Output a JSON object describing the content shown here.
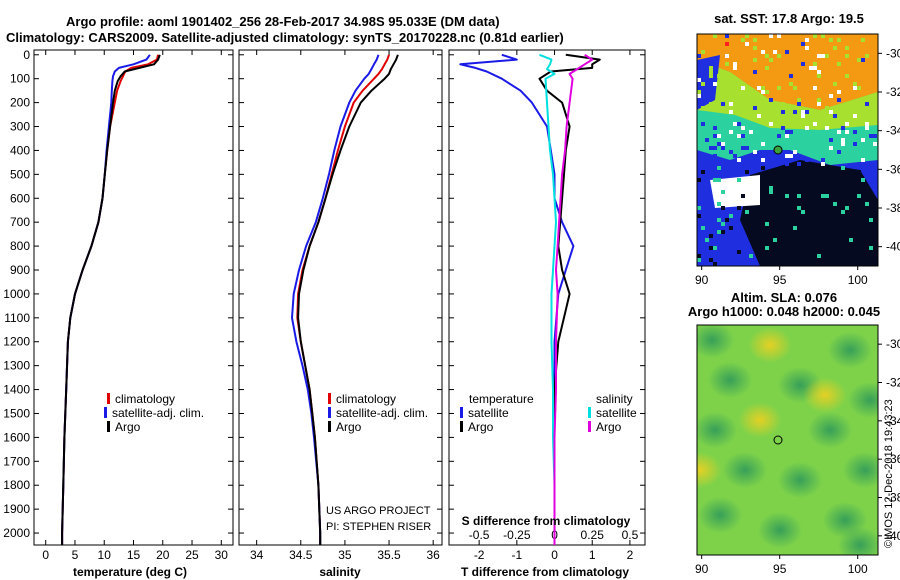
{
  "header": {
    "line1": "Argo profile: aoml 1901402_256 28-Feb-2017 34.98S 95.033E (DM data)",
    "line2": "Climatology: CARS2009. Satellite-adjusted climatology: synTS_20170228.nc (0.81d earlier)"
  },
  "depth_ticks": [
    "0",
    "100",
    "200",
    "300",
    "400",
    "500",
    "600",
    "700",
    "800",
    "900",
    "1000",
    "1100",
    "1200",
    "1300",
    "1400",
    "1500",
    "1600",
    "1700",
    "1800",
    "1900",
    "2000"
  ],
  "colors": {
    "climatology": "#e00000",
    "satellite": "#1a1ae6",
    "argo": "#000000",
    "sat_salinity": "#00e0e0",
    "argo_salinity": "#e000e0"
  },
  "chart_data": [
    {
      "type": "line",
      "name": "temperature",
      "xlabel": "temperature (deg C)",
      "xlim": [
        -2,
        32
      ],
      "ylim": [
        2050,
        -20
      ],
      "xticks": [
        0,
        5,
        10,
        15,
        20,
        25,
        30
      ],
      "xtick_labels": [
        "0",
        "5",
        "10",
        "15",
        "20",
        "25",
        "30"
      ],
      "legend": [
        "climatology",
        "satellite-adj. clim.",
        "Argo"
      ],
      "series": [
        {
          "name": "climatology",
          "depth": [
            0,
            20,
            40,
            55,
            70,
            90,
            110,
            150,
            200,
            300,
            400,
            500,
            600,
            700,
            800,
            900,
            1000,
            1100,
            1200,
            1400,
            1600,
            1800,
            2000,
            2050
          ],
          "values": [
            19.2,
            19.0,
            17.5,
            14.6,
            13.6,
            13.2,
            12.8,
            12.2,
            11.8,
            11.0,
            10.5,
            10.1,
            9.7,
            9.0,
            7.8,
            6.3,
            5.0,
            4.2,
            3.8,
            3.5,
            3.2,
            3.0,
            2.8,
            2.8
          ]
        },
        {
          "name": "satellite-adj. clim.",
          "depth": [
            0,
            20,
            40,
            55,
            70,
            90,
            110,
            150,
            200,
            300,
            400,
            500,
            600,
            700,
            800,
            900,
            1000,
            1100,
            1200,
            1400,
            1600,
            1800,
            2000,
            2050
          ],
          "values": [
            17.8,
            17.2,
            15.0,
            12.5,
            11.8,
            11.5,
            11.4,
            11.3,
            11.2,
            10.8,
            10.4,
            10.1,
            9.7,
            9.0,
            7.8,
            6.3,
            5.0,
            4.2,
            3.8,
            3.5,
            3.2,
            3.0,
            2.8,
            2.8
          ]
        },
        {
          "name": "Argo",
          "depth": [
            0,
            20,
            40,
            55,
            70,
            90,
            110,
            150,
            200,
            300,
            400,
            500,
            600,
            700,
            800,
            900,
            1000,
            1100,
            1200,
            1400,
            1600,
            1800,
            2000,
            2050
          ],
          "values": [
            19.5,
            19.2,
            18.5,
            16.0,
            13.5,
            12.8,
            12.3,
            11.8,
            11.5,
            11.0,
            10.5,
            10.1,
            9.7,
            9.0,
            7.8,
            6.3,
            5.0,
            4.2,
            3.8,
            3.5,
            3.2,
            3.0,
            2.8,
            2.8
          ]
        }
      ]
    },
    {
      "type": "line",
      "name": "salinity",
      "xlabel": "salinity",
      "xlim": [
        33.8,
        36.1
      ],
      "ylim": [
        2050,
        -20
      ],
      "xticks": [
        34,
        34.5,
        35,
        35.5,
        36
      ],
      "xtick_labels": [
        "34",
        "34.5",
        "35",
        "35.5",
        "36"
      ],
      "legend": [
        "climatology",
        "satellite-adj. clim.",
        "Argo"
      ],
      "series": [
        {
          "name": "climatology",
          "depth": [
            0,
            20,
            40,
            60,
            80,
            100,
            150,
            200,
            300,
            400,
            500,
            600,
            700,
            800,
            900,
            1000,
            1100,
            1200,
            1300,
            1400,
            1500,
            1600,
            1800,
            2000,
            2050
          ],
          "values": [
            35.5,
            35.48,
            35.45,
            35.42,
            35.38,
            35.33,
            35.2,
            35.1,
            35.0,
            34.92,
            34.85,
            34.78,
            34.7,
            34.6,
            34.52,
            34.47,
            34.46,
            34.5,
            34.55,
            34.6,
            34.63,
            34.66,
            34.7,
            34.72,
            34.72
          ]
        },
        {
          "name": "satellite-adj. clim.",
          "depth": [
            0,
            20,
            40,
            60,
            80,
            100,
            150,
            200,
            300,
            400,
            500,
            600,
            700,
            800,
            900,
            1000,
            1100,
            1200,
            1300,
            1400,
            1500,
            1600,
            1800,
            2000,
            2050
          ],
          "values": [
            35.38,
            35.36,
            35.33,
            35.3,
            35.27,
            35.22,
            35.12,
            35.05,
            34.95,
            34.88,
            34.82,
            34.75,
            34.67,
            34.56,
            34.48,
            34.42,
            34.4,
            34.45,
            34.52,
            34.58,
            34.62,
            34.65,
            34.7,
            34.72,
            34.72
          ]
        },
        {
          "name": "Argo",
          "depth": [
            0,
            20,
            40,
            60,
            80,
            100,
            150,
            200,
            300,
            400,
            500,
            600,
            700,
            800,
            900,
            1000,
            1100,
            1200,
            1300,
            1400,
            1500,
            1600,
            1800,
            2000,
            2050
          ],
          "values": [
            35.6,
            35.58,
            35.55,
            35.52,
            35.5,
            35.45,
            35.3,
            35.18,
            35.05,
            34.95,
            34.86,
            34.78,
            34.7,
            34.6,
            34.53,
            34.48,
            34.47,
            34.5,
            34.55,
            34.6,
            34.63,
            34.66,
            34.7,
            34.72,
            34.72
          ]
        }
      ]
    },
    {
      "type": "line",
      "name": "differences",
      "xlabel": "T difference from climatology",
      "top_label": "S difference from climatology",
      "xlim": [
        -2.8,
        2.4
      ],
      "ylim": [
        2050,
        -20
      ],
      "xticks": [
        -2,
        -1,
        0,
        1,
        2
      ],
      "xtick_labels": [
        "-2",
        "-1",
        "0",
        "1",
        "2"
      ],
      "top_ticks": [
        -0.5,
        -0.25,
        0,
        0.25,
        0.5
      ],
      "top_tick_labels": [
        "-0.5",
        "-0.25",
        "0",
        "0.25",
        "0.5"
      ],
      "legend_left_title": "temperature",
      "legend_right_title": "salinity",
      "legend": [
        "satellite",
        "Argo",
        "satellite",
        "Argo"
      ],
      "series": [
        {
          "name": "T satellite",
          "depth": [
            0,
            20,
            40,
            55,
            70,
            100,
            150,
            200,
            300,
            400,
            500,
            600,
            700,
            800,
            900,
            1000,
            1200,
            1400,
            1600,
            1800,
            2000,
            2050
          ],
          "values": [
            -1.4,
            -1.0,
            -2.5,
            -2.1,
            -1.8,
            -1.4,
            -0.9,
            -0.6,
            -0.2,
            -0.1,
            0,
            0,
            0.2,
            0.5,
            0.3,
            0.1,
            0,
            0,
            0,
            0,
            0,
            0
          ]
        },
        {
          "name": "T Argo",
          "depth": [
            0,
            20,
            40,
            55,
            70,
            100,
            150,
            200,
            300,
            400,
            500,
            600,
            700,
            800,
            900,
            1000,
            1200,
            1400,
            1600,
            1800,
            2000,
            2050
          ],
          "values": [
            0.3,
            1.2,
            1.0,
            1.0,
            -0.1,
            -0.4,
            -0.2,
            0.2,
            0.4,
            0.3,
            0.25,
            0.2,
            0.15,
            0.1,
            0.2,
            0.4,
            0.1,
            0,
            0,
            0,
            0,
            0
          ]
        },
        {
          "name": "S satellite",
          "depth": [
            0,
            20,
            40,
            60,
            80,
            100,
            200,
            300,
            400,
            500,
            600,
            700,
            800,
            900,
            1000,
            1200,
            1400,
            1600,
            1800,
            2000,
            2050
          ],
          "values": [
            -0.1,
            -0.02,
            -0.03,
            -0.05,
            0,
            -0.06,
            -0.05,
            -0.04,
            -0.03,
            -0.01,
            0,
            0.01,
            0,
            -0.01,
            -0.02,
            -0.02,
            -0.01,
            -0.01,
            0,
            0,
            0
          ]
        },
        {
          "name": "S Argo",
          "depth": [
            0,
            20,
            40,
            60,
            80,
            100,
            200,
            300,
            400,
            500,
            600,
            700,
            800,
            900,
            1000,
            1200,
            1400,
            1600,
            1800,
            2000,
            2050
          ],
          "values": [
            0.2,
            0.25,
            0.2,
            0.15,
            0.1,
            0.12,
            0.1,
            0.08,
            0.07,
            0.05,
            0.04,
            0.03,
            0.02,
            0.01,
            0.02,
            0.01,
            0.01,
            0,
            0,
            0,
            0
          ]
        }
      ]
    }
  ],
  "credits": {
    "line1": "US ARGO PROJECT",
    "line2": "PI: STEPHEN RISER"
  },
  "sst_map": {
    "title": "sat. SST: 17.8 Argo: 19.5",
    "yticks": [
      "-30",
      "-32",
      "-34",
      "-36",
      "-38",
      "-40"
    ],
    "xticks": [
      "90",
      "95",
      "100"
    ]
  },
  "sla_map": {
    "title1": "Altim. SLA: 0.076",
    "title2": "Argo h1000: 0.048 h2000: 0.045",
    "yticks": [
      "-30",
      "-32",
      "-34",
      "-36",
      "-38",
      "-40"
    ],
    "xticks": [
      "90",
      "95",
      "100"
    ]
  },
  "stamp": "©IMOS 12-Dec-2018 19:43:23"
}
